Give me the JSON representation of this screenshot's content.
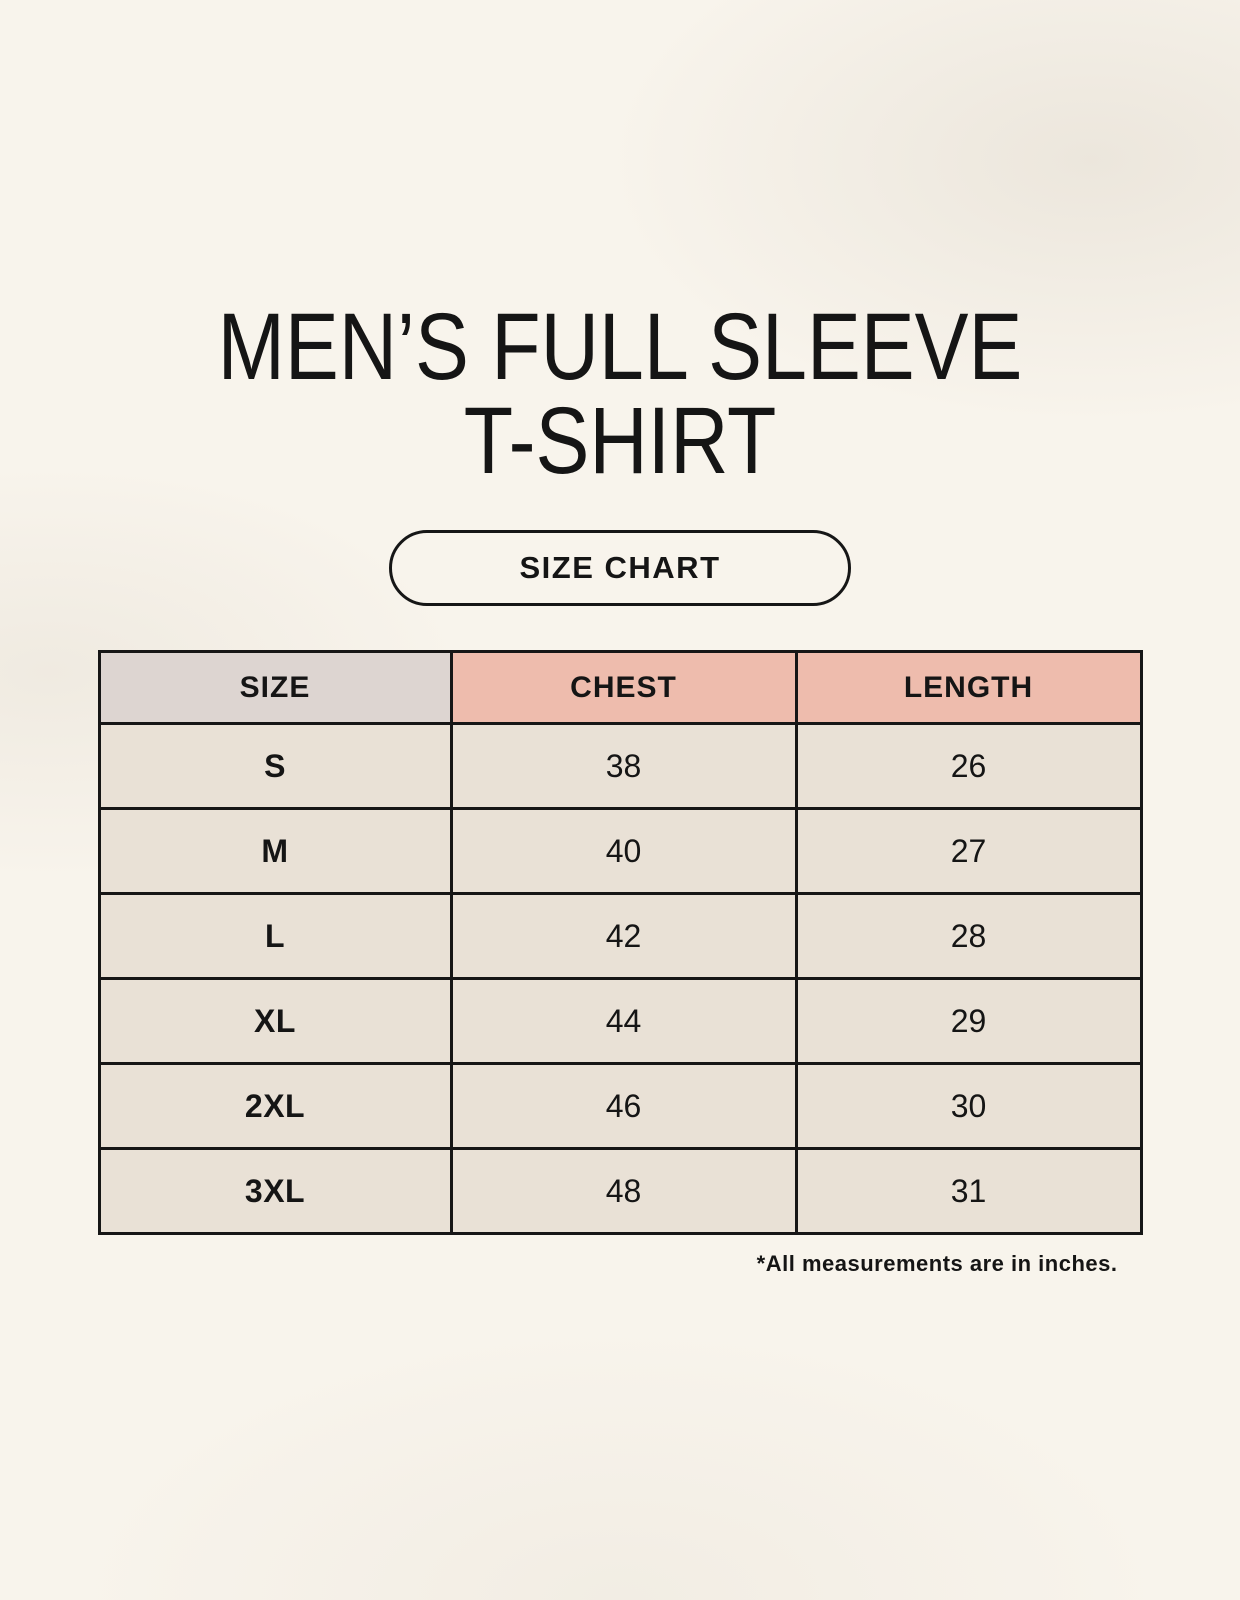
{
  "page": {
    "title_line1": "MEN’S FULL SLEEVE",
    "title_line2": "T-SHIRT",
    "badge_label": "SIZE CHART"
  },
  "colors": {
    "background": "#f8f4ec",
    "size_column_bg": "#ddd5d1",
    "measure_header_bg": "#eebcad",
    "data_cell_bg": "#e9e1d6",
    "border": "#161616",
    "text": "#151515"
  },
  "chart_data": {
    "type": "table",
    "title": "SIZE CHART",
    "columns": [
      "SIZE",
      "CHEST",
      "LENGTH"
    ],
    "rows": [
      {
        "size": "S",
        "chest": "38",
        "length": "26"
      },
      {
        "size": "M",
        "chest": "40",
        "length": "27"
      },
      {
        "size": "L",
        "chest": "42",
        "length": "28"
      },
      {
        "size": "XL",
        "chest": "44",
        "length": "29"
      },
      {
        "size": "2XL",
        "chest": "46",
        "length": "30"
      },
      {
        "size": "3XL",
        "chest": "48",
        "length": "31"
      }
    ],
    "units_note": "*All measurements are in inches."
  }
}
